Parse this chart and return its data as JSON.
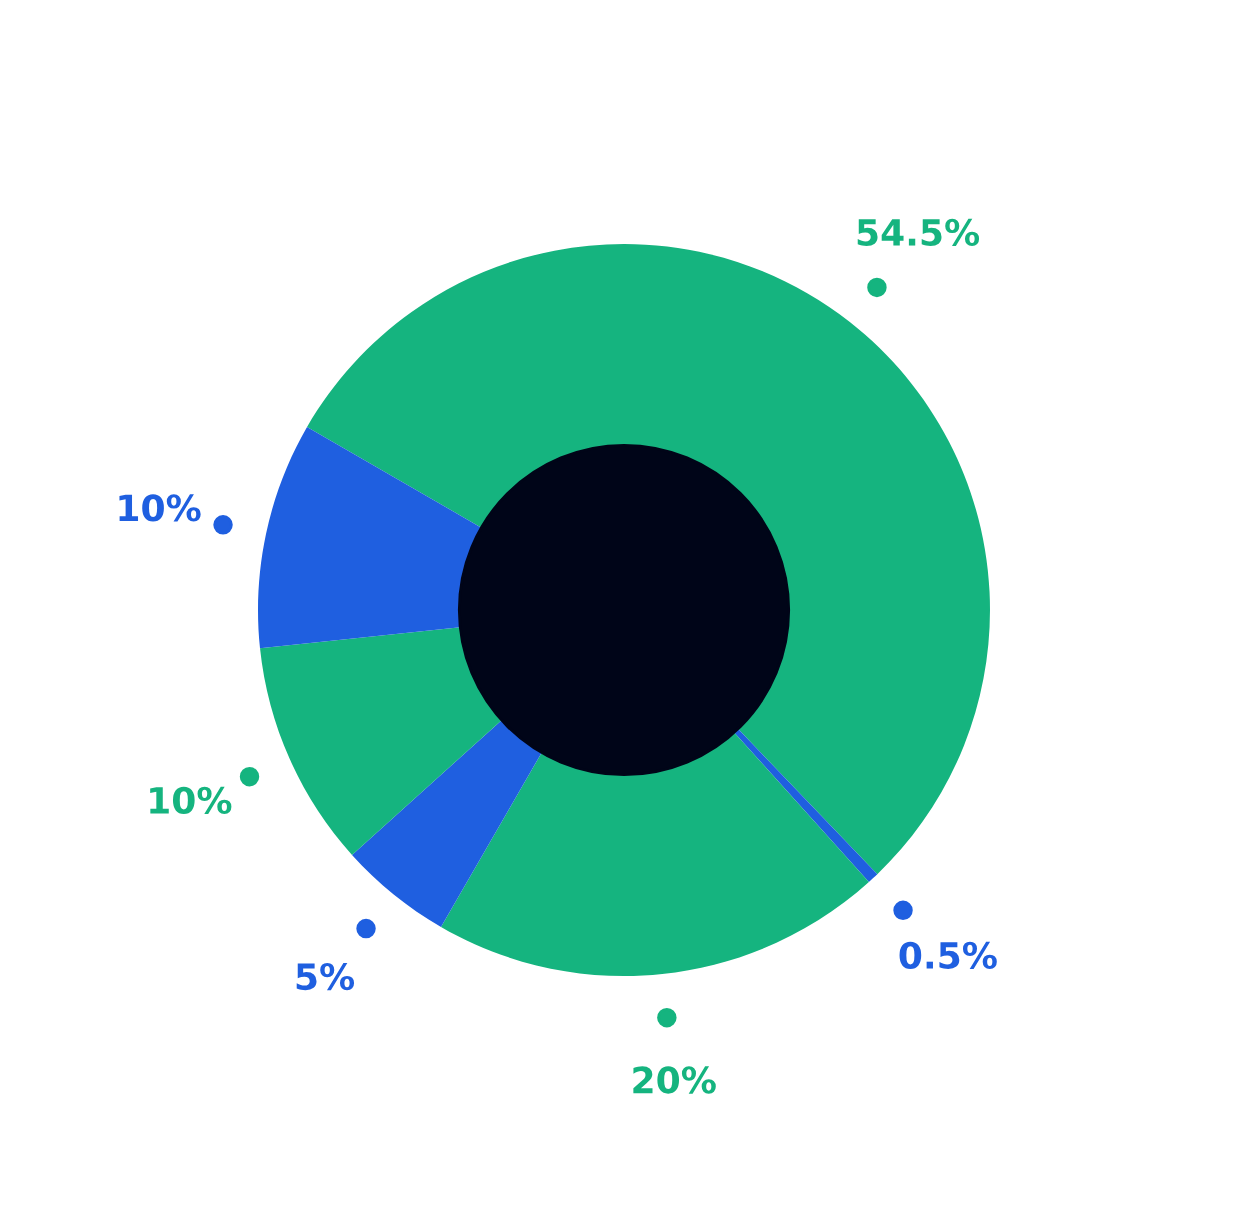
{
  "chart_data": {
    "type": "donut",
    "categories": [
      null,
      null,
      null,
      null,
      null,
      null
    ],
    "values": [
      54.5,
      0.5,
      20,
      5,
      10,
      10
    ],
    "colors": [
      "#15b47f",
      "#1f5fe0",
      "#15b47f",
      "#1f5fe0",
      "#15b47f",
      "#1f5fe0"
    ],
    "value_labels": [
      "54.5%",
      "0.5%",
      "20%",
      "5%",
      "10%",
      "10%"
    ],
    "legend": false
  }
}
